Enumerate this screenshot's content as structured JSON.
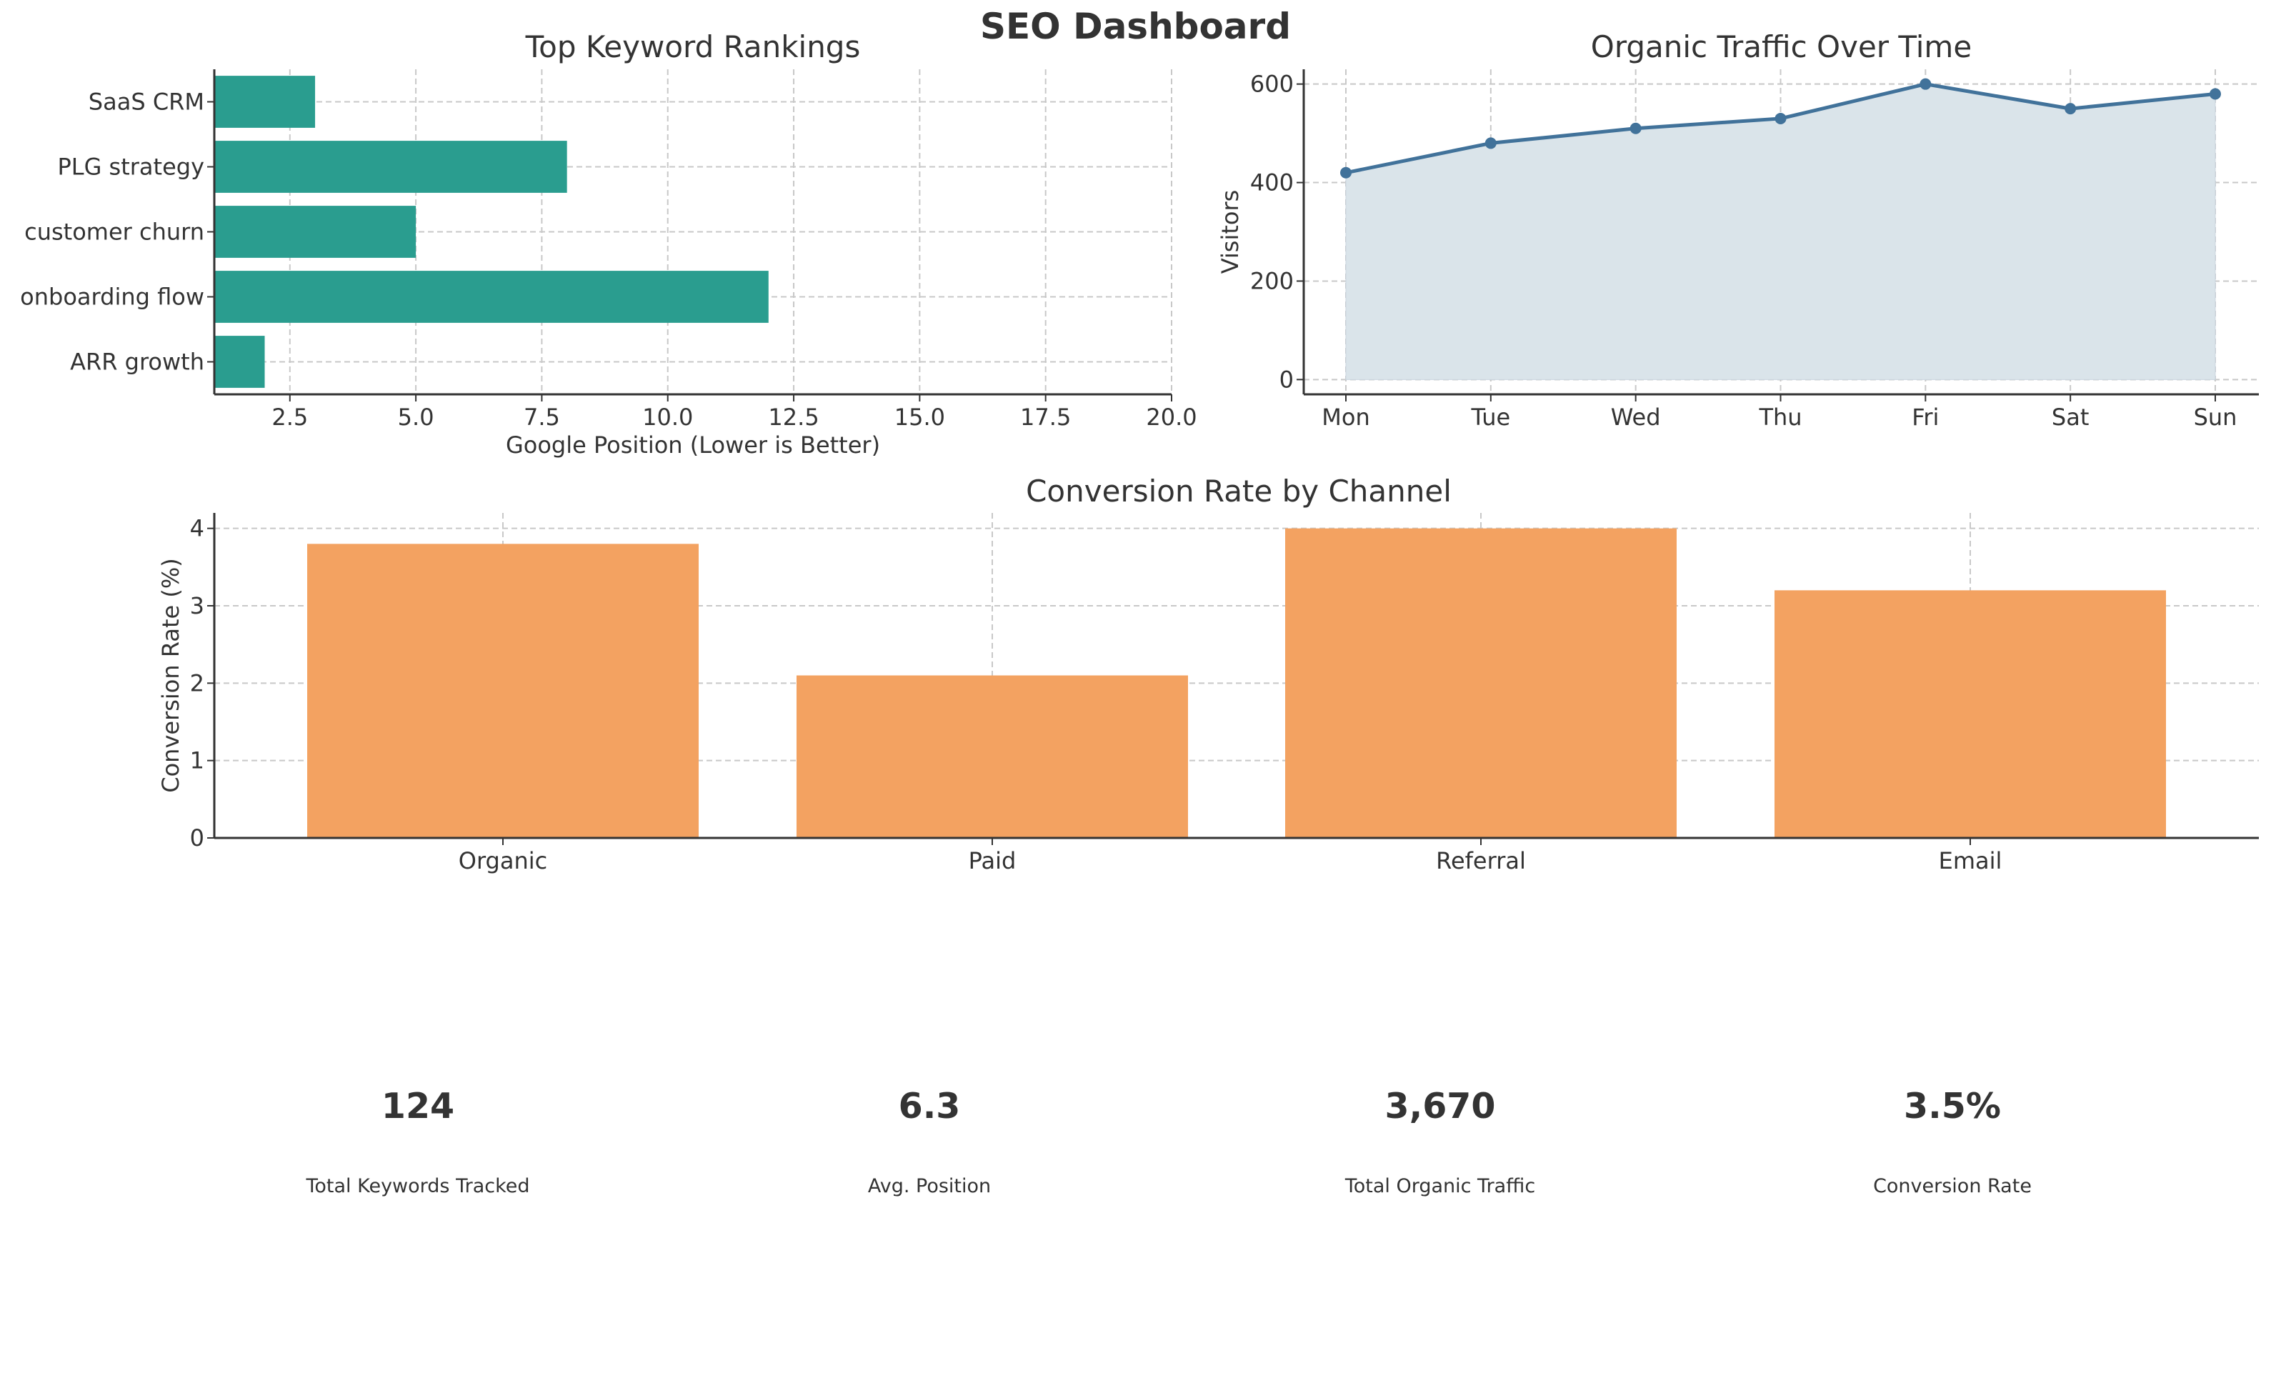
{
  "title": "SEO Dashboard",
  "colors": {
    "keyword_bar": "#2a9d8f",
    "traffic_line": "#41729a",
    "traffic_fill": "#dae4ea",
    "conversion_bar": "#f3a261",
    "text": "#333333",
    "grid": "#c8c8c8"
  },
  "chart_data": [
    {
      "type": "bar",
      "orientation": "horizontal",
      "title": "Top Keyword Rankings",
      "xlabel": "Google Position (Lower is Better)",
      "ylabel": "",
      "categories": [
        "ARR growth",
        "onboarding flow",
        "customer churn",
        "PLG strategy",
        "SaaS CRM"
      ],
      "values": [
        2,
        12,
        5,
        8,
        3
      ],
      "xlim": [
        1,
        20
      ],
      "xticks": [
        "2.5",
        "5.0",
        "7.5",
        "10.0",
        "12.5",
        "15.0",
        "17.5",
        "20.0"
      ],
      "grid": true
    },
    {
      "type": "area",
      "title": "Organic Traffic Over Time",
      "xlabel": "",
      "ylabel": "Visitors",
      "categories": [
        "Mon",
        "Tue",
        "Wed",
        "Thu",
        "Fri",
        "Sat",
        "Sun"
      ],
      "values": [
        420,
        480,
        510,
        530,
        600,
        550,
        580
      ],
      "ylim": [
        -30,
        630
      ],
      "yticks": [
        "0",
        "200",
        "400",
        "600"
      ],
      "markers": true,
      "grid": true
    },
    {
      "type": "bar",
      "title": "Conversion Rate by Channel",
      "xlabel": "",
      "ylabel": "Conversion Rate (%)",
      "categories": [
        "Organic",
        "Paid",
        "Referral",
        "Email"
      ],
      "values": [
        3.8,
        2.1,
        4.0,
        3.2
      ],
      "ylim": [
        0,
        4.2
      ],
      "yticks": [
        "0",
        "1",
        "2",
        "3",
        "4"
      ],
      "grid": true
    }
  ],
  "kpis": [
    {
      "value": "124",
      "label": "Total Keywords Tracked"
    },
    {
      "value": "6.3",
      "label": "Avg. Position"
    },
    {
      "value": "3,670",
      "label": "Total Organic Traffic"
    },
    {
      "value": "3.5%",
      "label": "Conversion Rate"
    }
  ]
}
